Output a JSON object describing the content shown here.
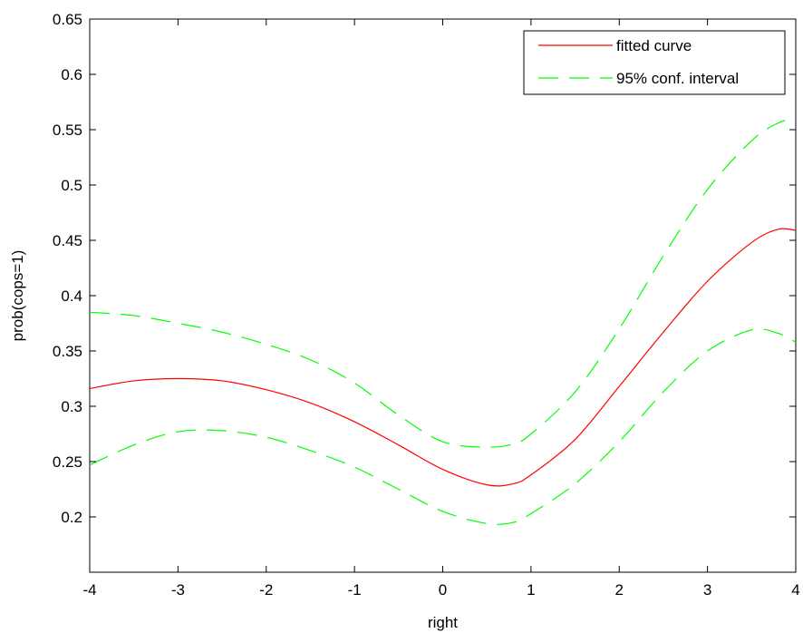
{
  "chart_data": {
    "type": "line",
    "title": "",
    "xlabel": "right",
    "ylabel": "prob(cops=1)",
    "xlim": [
      -4,
      4
    ],
    "ylim": [
      0.15,
      0.65
    ],
    "xticks": [
      -4,
      -3,
      -2,
      -1,
      0,
      1,
      2,
      3,
      4
    ],
    "xtick_labels": [
      "-4",
      "-3",
      "-2",
      "-1",
      "0",
      "1",
      "2",
      "3",
      "4"
    ],
    "yticks": [
      0.2,
      0.25,
      0.3,
      0.35,
      0.4,
      0.45,
      0.5,
      0.55,
      0.6,
      0.65
    ],
    "ytick_labels": [
      "0.2",
      "0.25",
      "0.3",
      "0.35",
      "0.4",
      "0.45",
      "0.5",
      "0.55",
      "0.6",
      "0.65"
    ],
    "grid": false,
    "legend_position": "top-right",
    "series": [
      {
        "name": "fitted curve",
        "color": "#ff0000",
        "style": "solid",
        "x": [
          -4,
          -3.5,
          -3,
          -2.5,
          -2,
          -1.5,
          -1,
          -0.5,
          0,
          0.5,
          0.8,
          1,
          1.5,
          2,
          2.5,
          3,
          3.5,
          3.8,
          4
        ],
        "y": [
          0.316,
          0.323,
          0.325,
          0.323,
          0.315,
          0.303,
          0.286,
          0.265,
          0.243,
          0.229,
          0.23,
          0.238,
          0.27,
          0.318,
          0.367,
          0.413,
          0.448,
          0.46,
          0.459
        ]
      },
      {
        "name": "95% conf. interval",
        "color": "#00ff00",
        "style": "dashed",
        "x": [
          -4,
          -3.5,
          -3,
          -2.5,
          -2,
          -1.5,
          -1,
          -0.5,
          0,
          0.5,
          0.8,
          1,
          1.5,
          2,
          2.5,
          3,
          3.5,
          3.8,
          4
        ],
        "y": [
          0.385,
          0.382,
          0.375,
          0.367,
          0.356,
          0.342,
          0.321,
          0.292,
          0.268,
          0.263,
          0.266,
          0.275,
          0.313,
          0.37,
          0.436,
          0.496,
          0.54,
          0.556,
          0.56
        ]
      },
      {
        "name": "",
        "color": "#00ff00",
        "style": "dashed",
        "x": [
          -4,
          -3.5,
          -3,
          -2.5,
          -2,
          -1.5,
          -1,
          -0.5,
          0,
          0.5,
          0.8,
          1,
          1.5,
          2,
          2.5,
          3,
          3.5,
          3.8,
          4
        ],
        "y": [
          0.247,
          0.265,
          0.277,
          0.278,
          0.272,
          0.26,
          0.245,
          0.225,
          0.205,
          0.194,
          0.195,
          0.203,
          0.23,
          0.268,
          0.313,
          0.35,
          0.369,
          0.366,
          0.358
        ]
      }
    ],
    "legend": [
      {
        "label": "fitted curve",
        "color": "#ff0000",
        "style": "solid"
      },
      {
        "label": "95% conf. interval",
        "color": "#00ff00",
        "style": "dashed"
      }
    ]
  }
}
